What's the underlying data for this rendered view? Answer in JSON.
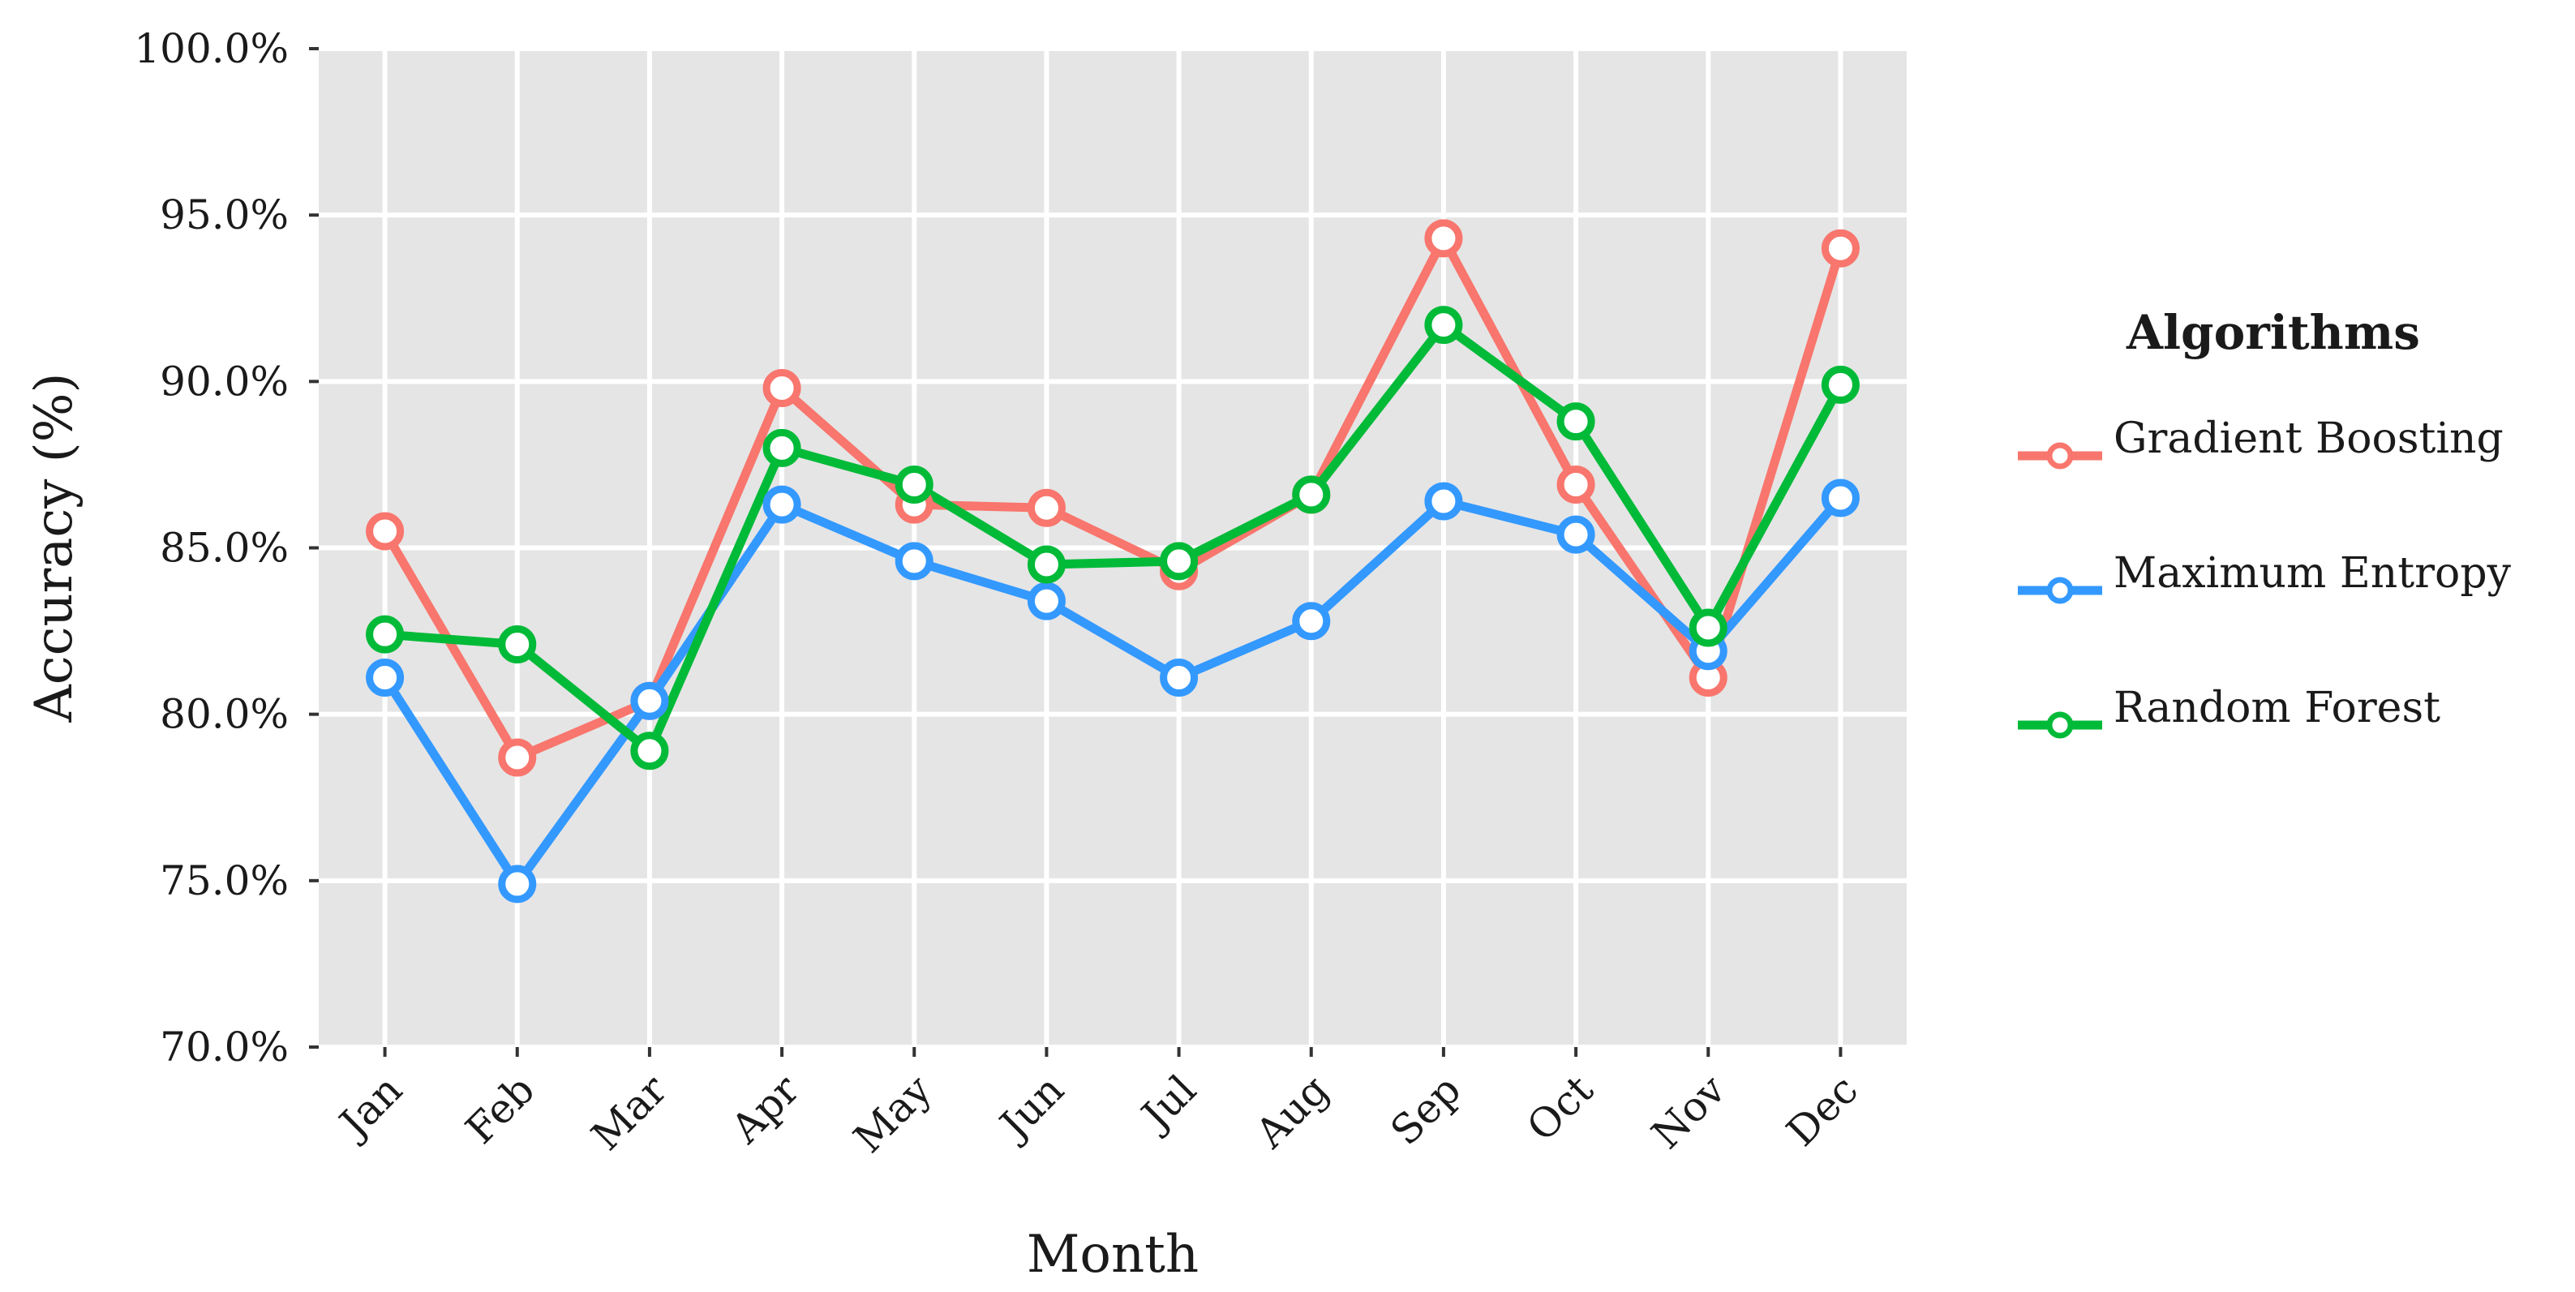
{
  "chart_data": {
    "type": "line",
    "categories": [
      "Jan",
      "Feb",
      "Mar",
      "Apr",
      "May",
      "Jun",
      "Jul",
      "Aug",
      "Sep",
      "Oct",
      "Nov",
      "Dec"
    ],
    "series": [
      {
        "name": "Gradient Boosting",
        "color": "#F8766D",
        "values": [
          85.5,
          78.7,
          80.4,
          89.8,
          86.3,
          86.2,
          84.3,
          86.6,
          94.3,
          86.9,
          81.1,
          94.0
        ]
      },
      {
        "name": "Maximum Entropy",
        "color": "#3399FF",
        "values": [
          81.1,
          74.9,
          80.4,
          86.3,
          84.6,
          83.4,
          81.1,
          82.8,
          86.4,
          85.4,
          81.9,
          86.5
        ]
      },
      {
        "name": "Random Forest",
        "color": "#00BA38",
        "values": [
          82.4,
          82.1,
          78.9,
          88.0,
          86.9,
          84.5,
          84.6,
          86.6,
          91.7,
          88.8,
          82.6,
          89.9
        ]
      }
    ],
    "yticks": [
      "70.0%",
      "75.0%",
      "80.0%",
      "85.0%",
      "90.0%",
      "95.0%",
      "100.0%"
    ],
    "ylim": [
      70,
      100
    ],
    "xlabel": "Month",
    "ylabel": "Accuracy (%)",
    "legend_title": "Algorithms",
    "legend_position": "right",
    "grid": true,
    "panel_background": "#E5E5E5"
  }
}
